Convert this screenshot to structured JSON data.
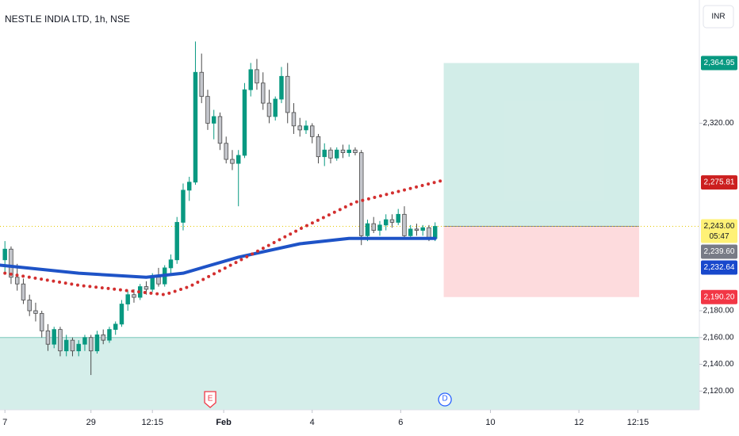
{
  "chart_data": {
    "type": "candlestick",
    "title": "NESTLE INDIA LTD, 1h, NSE",
    "currency": "INR",
    "up_color": "#089981",
    "down_color": "#c4c6cc",
    "open": [
      2218,
      2226,
      2205,
      2200,
      2188,
      2180,
      2178,
      2165,
      2155,
      2166,
      2150,
      2158,
      2150,
      2155,
      2160,
      2150,
      2162,
      2158,
      2166,
      2170,
      2185,
      2192,
      2190,
      2198,
      2196,
      2205,
      2200,
      2212,
      2218,
      2246,
      2270,
      2276,
      2358,
      2340,
      2320,
      2325,
      2305,
      2293,
      2290,
      2296,
      2345,
      2360,
      2350,
      2335,
      2325,
      2338,
      2355,
      2328,
      2318,
      2315,
      2318,
      2310,
      2295,
      2300,
      2294,
      2300,
      2298,
      2300,
      2298,
      2236,
      2245,
      2240,
      2244,
      2248,
      2246,
      2252,
      2236,
      2241,
      2240,
      2242,
      2234
    ],
    "high": [
      2232,
      2228,
      2215,
      2204,
      2192,
      2186,
      2180,
      2170,
      2168,
      2168,
      2162,
      2160,
      2158,
      2162,
      2162,
      2165,
      2166,
      2168,
      2172,
      2188,
      2195,
      2196,
      2200,
      2202,
      2208,
      2212,
      2214,
      2222,
      2250,
      2275,
      2280,
      2381,
      2372,
      2345,
      2330,
      2328,
      2310,
      2300,
      2300,
      2350,
      2365,
      2368,
      2358,
      2345,
      2340,
      2362,
      2365,
      2335,
      2324,
      2322,
      2320,
      2312,
      2305,
      2302,
      2302,
      2304,
      2304,
      2302,
      2300,
      2248,
      2250,
      2247,
      2252,
      2252,
      2256,
      2258,
      2244,
      2245,
      2244,
      2244,
      2246
    ],
    "low": [
      2208,
      2200,
      2195,
      2185,
      2176,
      2172,
      2160,
      2150,
      2152,
      2146,
      2146,
      2146,
      2146,
      2150,
      2132,
      2148,
      2155,
      2156,
      2162,
      2168,
      2180,
      2186,
      2188,
      2192,
      2194,
      2198,
      2198,
      2208,
      2215,
      2240,
      2262,
      2274,
      2335,
      2315,
      2308,
      2300,
      2290,
      2285,
      2258,
      2294,
      2340,
      2345,
      2330,
      2320,
      2322,
      2335,
      2320,
      2312,
      2310,
      2312,
      2305,
      2290,
      2288,
      2290,
      2292,
      2294,
      2295,
      2296,
      2229,
      2232,
      2238,
      2236,
      2240,
      2242,
      2244,
      2234,
      2234,
      2236,
      2236,
      2232,
      2232
    ],
    "close": [
      2226,
      2205,
      2200,
      2188,
      2180,
      2178,
      2165,
      2155,
      2166,
      2150,
      2158,
      2150,
      2155,
      2160,
      2150,
      2162,
      2158,
      2166,
      2170,
      2185,
      2192,
      2190,
      2198,
      2196,
      2205,
      2200,
      2212,
      2218,
      2246,
      2270,
      2276,
      2358,
      2340,
      2320,
      2325,
      2305,
      2293,
      2290,
      2296,
      2345,
      2360,
      2350,
      2335,
      2325,
      2338,
      2355,
      2328,
      2318,
      2315,
      2318,
      2310,
      2295,
      2300,
      2294,
      2300,
      2298,
      2300,
      2298,
      2236,
      2245,
      2240,
      2244,
      2248,
      2246,
      2252,
      2236,
      2241,
      2240,
      2242,
      2234,
      2243
    ],
    "xlim": [
      -0.8,
      113
    ],
    "xticks": [
      {
        "value": 0,
        "label": "7"
      },
      {
        "value": 14,
        "label": "29"
      },
      {
        "value": 24,
        "label": "12:15"
      },
      {
        "value": 35.6,
        "label": "Feb"
      },
      {
        "value": 50,
        "label": "4"
      },
      {
        "value": 64.4,
        "label": "6"
      },
      {
        "value": 79,
        "label": "10"
      },
      {
        "value": 93.4,
        "label": "12"
      },
      {
        "value": 103,
        "label": "12:15"
      }
    ],
    "ylim": [
      2106,
      2412
    ],
    "yticks": [
      {
        "value": 2120,
        "label": "2,120.00"
      },
      {
        "value": 2140,
        "label": "2,140.00"
      },
      {
        "value": 2160,
        "label": "2,160.00"
      },
      {
        "value": 2180,
        "label": "2,180.00"
      },
      {
        "value": 2320,
        "label": "2,320.00"
      }
    ],
    "series": [
      {
        "color": "#1e53c7",
        "style": "solid",
        "x": [
          -0.8,
          12,
          23,
          29,
          38,
          48,
          56,
          70
        ],
        "values": [
          2214,
          2208,
          2205,
          2208,
          2220,
          2230,
          2234,
          2234
        ]
      },
      {
        "color": "#d32f2f",
        "style": "dotted",
        "x": [
          0,
          12,
          20,
          26,
          30,
          38,
          48,
          57,
          71
        ],
        "values": [
          2208,
          2199,
          2195,
          2192,
          2198,
          2217,
          2241,
          2261,
          2277
        ]
      }
    ],
    "support_zone": {
      "top": 2160,
      "color": "#089981"
    },
    "position": {
      "x": [
        71.4,
        103.2
      ],
      "target": 2364.95,
      "entry": 2243,
      "stop": 2190.2
    },
    "price_labels": [
      {
        "value": 2364.95,
        "label": "2,364.95",
        "color": "#089981"
      },
      {
        "value": 2275.81,
        "label": "2,275.81",
        "color": "#cc1f1f"
      },
      {
        "value": 2243,
        "label": "2,243.00",
        "countdown": "05:47",
        "color": "#fff176"
      },
      {
        "value": 2239.6,
        "label": "2,239.60",
        "color": "#787b86"
      },
      {
        "value": 2232.64,
        "label": "2,232.64",
        "color": "#1848cc"
      },
      {
        "value": 2190.2,
        "label": "2,190.20",
        "color": "#f23645"
      }
    ],
    "events": [
      {
        "x": 33.4,
        "label": "E",
        "color": "#f23645"
      },
      {
        "x": 71.6,
        "label": "D",
        "color": "#2962ff"
      }
    ]
  }
}
